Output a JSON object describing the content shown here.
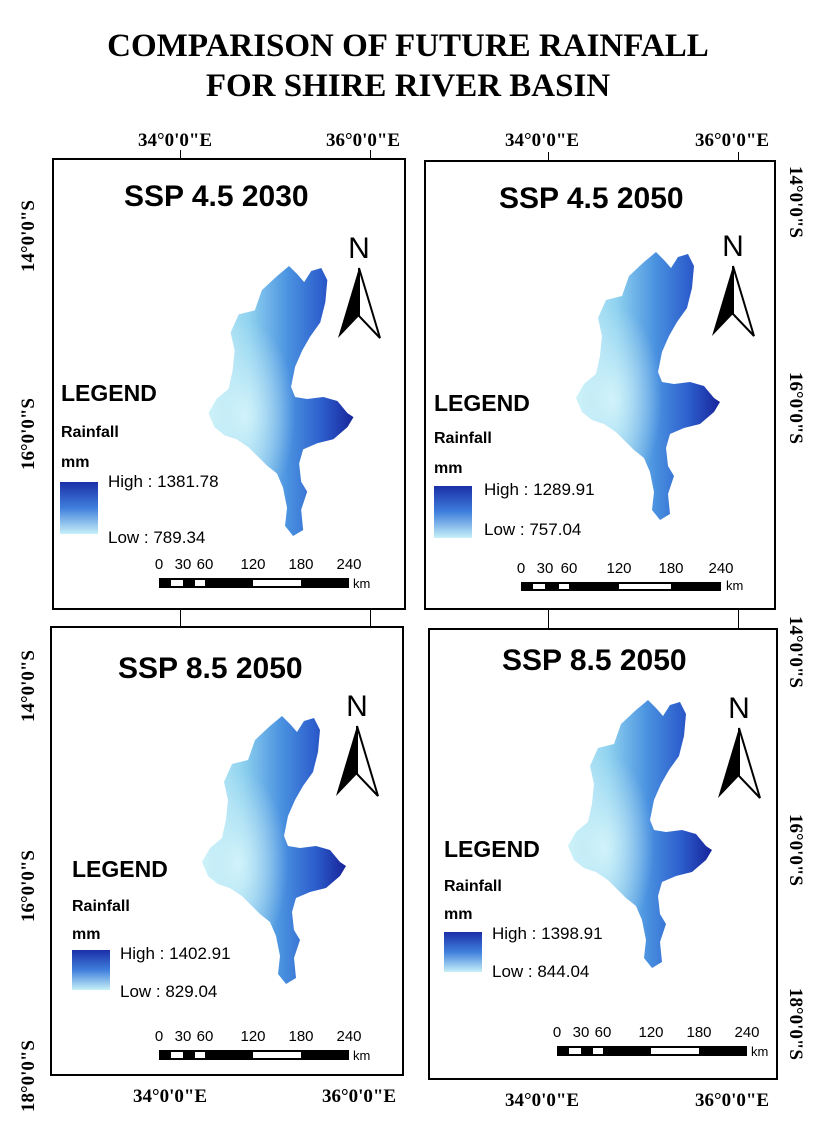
{
  "title": [
    "COMPARISON OF FUTURE RAINFALL",
    "FOR SHIRE RIVER BASIN"
  ],
  "coords": {
    "lon1": "34°0'0\"E",
    "lon2": "36°0'0\"E",
    "lat1": "14°0'0\"S",
    "lat2": "16°0'0\"S",
    "lat3": "18°0'0\"S"
  },
  "legend": {
    "title": "LEGEND",
    "variable": "Rainfall",
    "unit": "mm"
  },
  "north_label": "N",
  "scale": {
    "labels": [
      "0",
      "30",
      "60",
      "120",
      "180",
      "240"
    ],
    "unit": "km"
  },
  "panels": [
    {
      "title": "SSP 4.5 2030",
      "high": "High : 1381.78",
      "low": "Low : 789.34"
    },
    {
      "title": "SSP 4.5 2050",
      "high": "High : 1289.91",
      "low": "Low : 757.04"
    },
    {
      "title": "SSP 8.5 2050",
      "high": "High : 1402.91",
      "low": "Low : 829.04"
    },
    {
      "title": "SSP 8.5 2050",
      "high": "High : 1398.91",
      "low": "Low : 844.04"
    }
  ],
  "colors": {
    "high": "#1b2fa8",
    "mid": "#3f7fdc",
    "low": "#c7f0f8"
  }
}
